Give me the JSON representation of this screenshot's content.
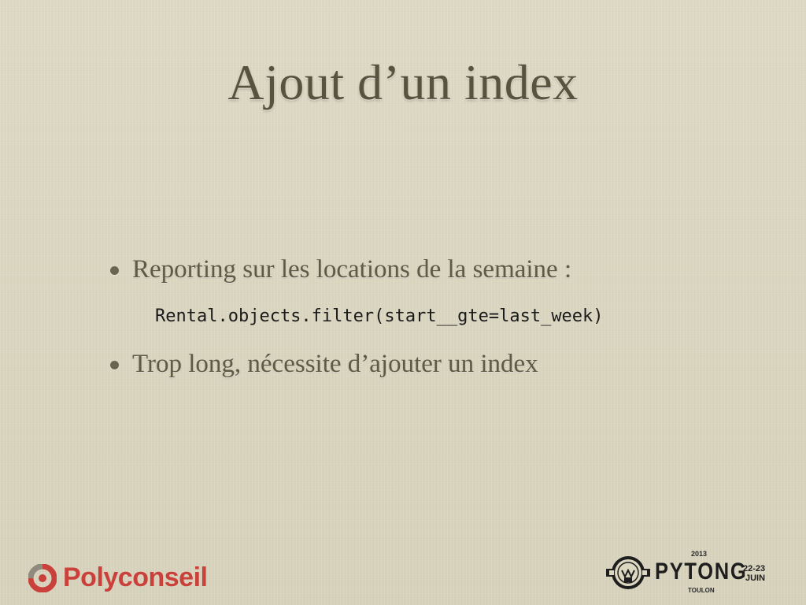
{
  "slide": {
    "title": "Ajout d’un index",
    "bullets": [
      {
        "text": "Reporting sur les locations de la semaine :"
      },
      {
        "text": "Trop long, nécessite d’ajouter un index"
      }
    ],
    "code": "Rental.objects.filter(start__gte=last_week)"
  },
  "footer": {
    "left_logo": {
      "icon": "polyconseil-logo-icon",
      "text": "Polyconseil",
      "color": "#c9413a"
    },
    "right_logo": {
      "icon": "pytong-badge-icon",
      "name": "PYTONG",
      "year": "2013",
      "city": "TOULON",
      "dates": "22-23",
      "month": "JUIN"
    }
  }
}
